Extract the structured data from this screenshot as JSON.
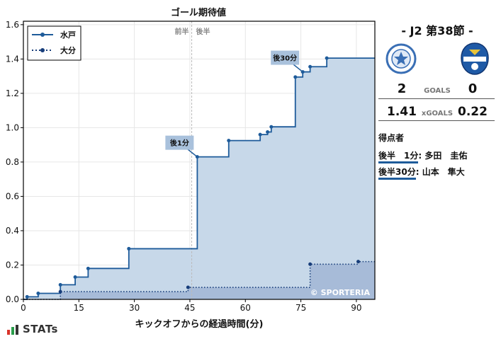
{
  "chart_data": {
    "type": "step",
    "title": "ゴール期待値",
    "xlabel": "キックオフからの経過時間(分)",
    "ylabel": "",
    "xlim": [
      0,
      95
    ],
    "ylim": [
      0,
      1.62
    ],
    "xticks": [
      0,
      15,
      30,
      45,
      60,
      75,
      90
    ],
    "yticks": [
      0.0,
      0.2,
      0.4,
      0.6,
      0.8,
      1.0,
      1.2,
      1.4,
      1.6
    ],
    "grid": true,
    "legend_position": "top-left",
    "half_line": {
      "x": 45.5,
      "label_left": "前半",
      "label_right": "後半"
    },
    "series": [
      {
        "name": "水戸",
        "style": "solid",
        "color": "#1e5b9a",
        "fill": "#c7d8e9",
        "points": [
          [
            0,
            0.0
          ],
          [
            1,
            0.015
          ],
          [
            4,
            0.035
          ],
          [
            10,
            0.085
          ],
          [
            14,
            0.13
          ],
          [
            17.5,
            0.18
          ],
          [
            28.5,
            0.295
          ],
          [
            47,
            0.83
          ],
          [
            55.5,
            0.925
          ],
          [
            64,
            0.96
          ],
          [
            66,
            0.975
          ],
          [
            67,
            1.005
          ],
          [
            73.5,
            1.295
          ],
          [
            75.5,
            1.325
          ],
          [
            77.5,
            1.355
          ],
          [
            82,
            1.405
          ],
          [
            95,
            1.405
          ]
        ]
      },
      {
        "name": "大分",
        "style": "dotted",
        "color": "#173d7a",
        "fill": "#a3b8d6",
        "points": [
          [
            0,
            0.0
          ],
          [
            10,
            0.045
          ],
          [
            44.5,
            0.07
          ],
          [
            77.5,
            0.205
          ],
          [
            90.5,
            0.22
          ],
          [
            95,
            0.22
          ]
        ]
      }
    ],
    "annotations": [
      {
        "text": "後1分",
        "x": 47,
        "y": 0.83
      },
      {
        "text": "後30分",
        "x": 75.5,
        "y": 1.325
      }
    ],
    "watermark": "© SPORTERIA"
  },
  "match": {
    "title": "-  J2 第38節  -",
    "home_score": "2",
    "away_score": "0",
    "goals_label": "GOALS",
    "home_xg": "1.41",
    "away_xg": "0.22",
    "xg_label": "xGOALS",
    "scorers_title": "得点者",
    "scorers": [
      {
        "time": "後半　1分",
        "sep": ":",
        "name": "多田　圭佑"
      },
      {
        "time": "後半30分",
        "sep": ":",
        "name": "山本　隼大"
      }
    ],
    "home_color": "#3a6fb5",
    "away_color": "#1f5aa6"
  },
  "branding": {
    "name": "STATs"
  }
}
